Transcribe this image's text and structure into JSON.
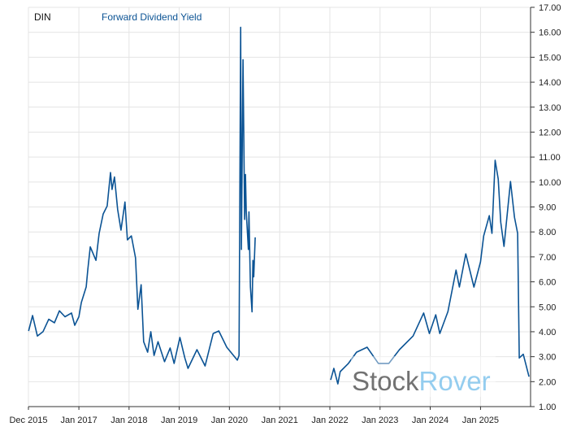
{
  "chart_data": {
    "type": "line",
    "title": "",
    "xlabel": "",
    "ylabel": "",
    "symbol": "DIN",
    "grid": true,
    "y_axis_side": "right",
    "legend_placement": "top-left",
    "xlim": [
      "2015-12-31",
      "2025-12-31"
    ],
    "ylim": [
      1,
      17
    ],
    "y_ticks": [
      "1.00",
      "2.00",
      "3.00",
      "4.00",
      "5.00",
      "6.00",
      "7.00",
      "8.00",
      "9.00",
      "10.00",
      "11.00",
      "12.00",
      "13.00",
      "14.00",
      "15.00",
      "16.00",
      "17.00"
    ],
    "x_ticks": [
      {
        "date": "2015-12-31",
        "label": "Dec 2015"
      },
      {
        "date": "2017-01-01",
        "label": "Jan 2017"
      },
      {
        "date": "2018-01-01",
        "label": "Jan 2018"
      },
      {
        "date": "2019-01-01",
        "label": "Jan 2019"
      },
      {
        "date": "2020-01-01",
        "label": "Jan 2020"
      },
      {
        "date": "2021-01-01",
        "label": "Jan 2021"
      },
      {
        "date": "2022-01-01",
        "label": "Jan 2022"
      },
      {
        "date": "2023-01-01",
        "label": "Jan 2023"
      },
      {
        "date": "2024-01-01",
        "label": "Jan 2024"
      },
      {
        "date": "2025-01-01",
        "label": "Jan 2025"
      }
    ],
    "series": [
      {
        "name": "Forward Dividend Yield",
        "color": "#0b5394",
        "segments": [
          [
            [
              "2016-01-01",
              4.03
            ],
            [
              "2016-01-30",
              4.65
            ],
            [
              "2016-03-05",
              3.83
            ],
            [
              "2016-04-15",
              4.0
            ],
            [
              "2016-05-27",
              4.5
            ],
            [
              "2016-07-07",
              4.36
            ],
            [
              "2016-08-12",
              4.84
            ],
            [
              "2016-09-22",
              4.6
            ],
            [
              "2016-11-08",
              4.75
            ],
            [
              "2016-12-02",
              4.26
            ],
            [
              "2017-01-01",
              4.6
            ],
            [
              "2017-01-19",
              5.17
            ],
            [
              "2017-02-23",
              5.8
            ],
            [
              "2017-03-07",
              6.5
            ],
            [
              "2017-03-25",
              7.4
            ],
            [
              "2017-05-05",
              6.86
            ],
            [
              "2017-05-28",
              7.94
            ],
            [
              "2017-06-27",
              8.72
            ],
            [
              "2017-07-26",
              9.04
            ],
            [
              "2017-08-19",
              10.38
            ],
            [
              "2017-08-30",
              9.7
            ],
            [
              "2017-09-17",
              10.2
            ],
            [
              "2017-10-10",
              8.9
            ],
            [
              "2017-11-03",
              8.07
            ],
            [
              "2017-12-02",
              9.2
            ],
            [
              "2017-12-20",
              7.68
            ],
            [
              "2018-01-18",
              7.84
            ],
            [
              "2018-02-17",
              6.96
            ],
            [
              "2018-03-06",
              4.9
            ],
            [
              "2018-03-30",
              5.88
            ],
            [
              "2018-04-17",
              3.6
            ],
            [
              "2018-05-16",
              3.18
            ],
            [
              "2018-06-08",
              4.0
            ],
            [
              "2018-07-02",
              3.05
            ],
            [
              "2018-07-31",
              3.6
            ],
            [
              "2018-09-16",
              2.8
            ],
            [
              "2018-10-27",
              3.35
            ],
            [
              "2018-11-25",
              2.73
            ],
            [
              "2019-01-06",
              3.77
            ],
            [
              "2019-02-11",
              2.95
            ],
            [
              "2019-03-06",
              2.53
            ],
            [
              "2019-05-10",
              3.28
            ],
            [
              "2019-07-08",
              2.63
            ],
            [
              "2019-09-05",
              3.93
            ],
            [
              "2019-10-16",
              4.03
            ],
            [
              "2019-12-13",
              3.38
            ],
            [
              "2020-02-28",
              2.86
            ],
            [
              "2020-03-11",
              3.05
            ],
            [
              "2020-03-23",
              16.2
            ],
            [
              "2020-03-28",
              7.3
            ],
            [
              "2020-04-09",
              14.9
            ],
            [
              "2020-04-21",
              8.5
            ],
            [
              "2020-04-27",
              10.3
            ],
            [
              "2020-05-03",
              8.8
            ],
            [
              "2020-05-18",
              7.3
            ],
            [
              "2020-05-22",
              8.8
            ],
            [
              "2020-06-02",
              5.8
            ],
            [
              "2020-06-14",
              4.8
            ],
            [
              "2020-06-20",
              6.86
            ],
            [
              "2020-06-26",
              6.2
            ],
            [
              "2020-07-07",
              7.78
            ]
          ],
          [
            [
              "2022-01-07",
              2.07
            ],
            [
              "2022-01-30",
              2.53
            ],
            [
              "2022-02-28",
              1.91
            ],
            [
              "2022-03-17",
              2.4
            ],
            [
              "2022-05-16",
              2.73
            ],
            [
              "2022-07-14",
              3.18
            ],
            [
              "2022-09-29",
              3.38
            ],
            [
              "2022-12-20",
              2.73
            ],
            [
              "2023-03-06",
              2.73
            ],
            [
              "2023-05-22",
              3.28
            ],
            [
              "2023-08-29",
              3.83
            ],
            [
              "2023-11-14",
              4.75
            ],
            [
              "2023-12-26",
              3.93
            ],
            [
              "2024-02-10",
              4.68
            ],
            [
              "2024-03-11",
              3.93
            ],
            [
              "2024-05-09",
              4.81
            ],
            [
              "2024-07-07",
              6.47
            ],
            [
              "2024-07-31",
              5.79
            ],
            [
              "2024-09-16",
              7.12
            ],
            [
              "2024-11-14",
              5.79
            ],
            [
              "2025-01-01",
              6.8
            ],
            [
              "2025-01-24",
              7.84
            ],
            [
              "2025-03-06",
              8.65
            ],
            [
              "2025-03-25",
              7.94
            ],
            [
              "2025-04-17",
              10.87
            ],
            [
              "2025-05-10",
              10.12
            ],
            [
              "2025-05-28",
              8.39
            ],
            [
              "2025-06-21",
              7.42
            ],
            [
              "2025-08-07",
              10.02
            ],
            [
              "2025-09-05",
              8.59
            ],
            [
              "2025-09-28",
              7.94
            ],
            [
              "2025-10-10",
              2.95
            ],
            [
              "2025-11-08",
              3.1
            ],
            [
              "2025-12-20",
              2.2
            ]
          ]
        ]
      }
    ]
  },
  "watermark": {
    "part1": "Stock",
    "part2": "Rover"
  }
}
